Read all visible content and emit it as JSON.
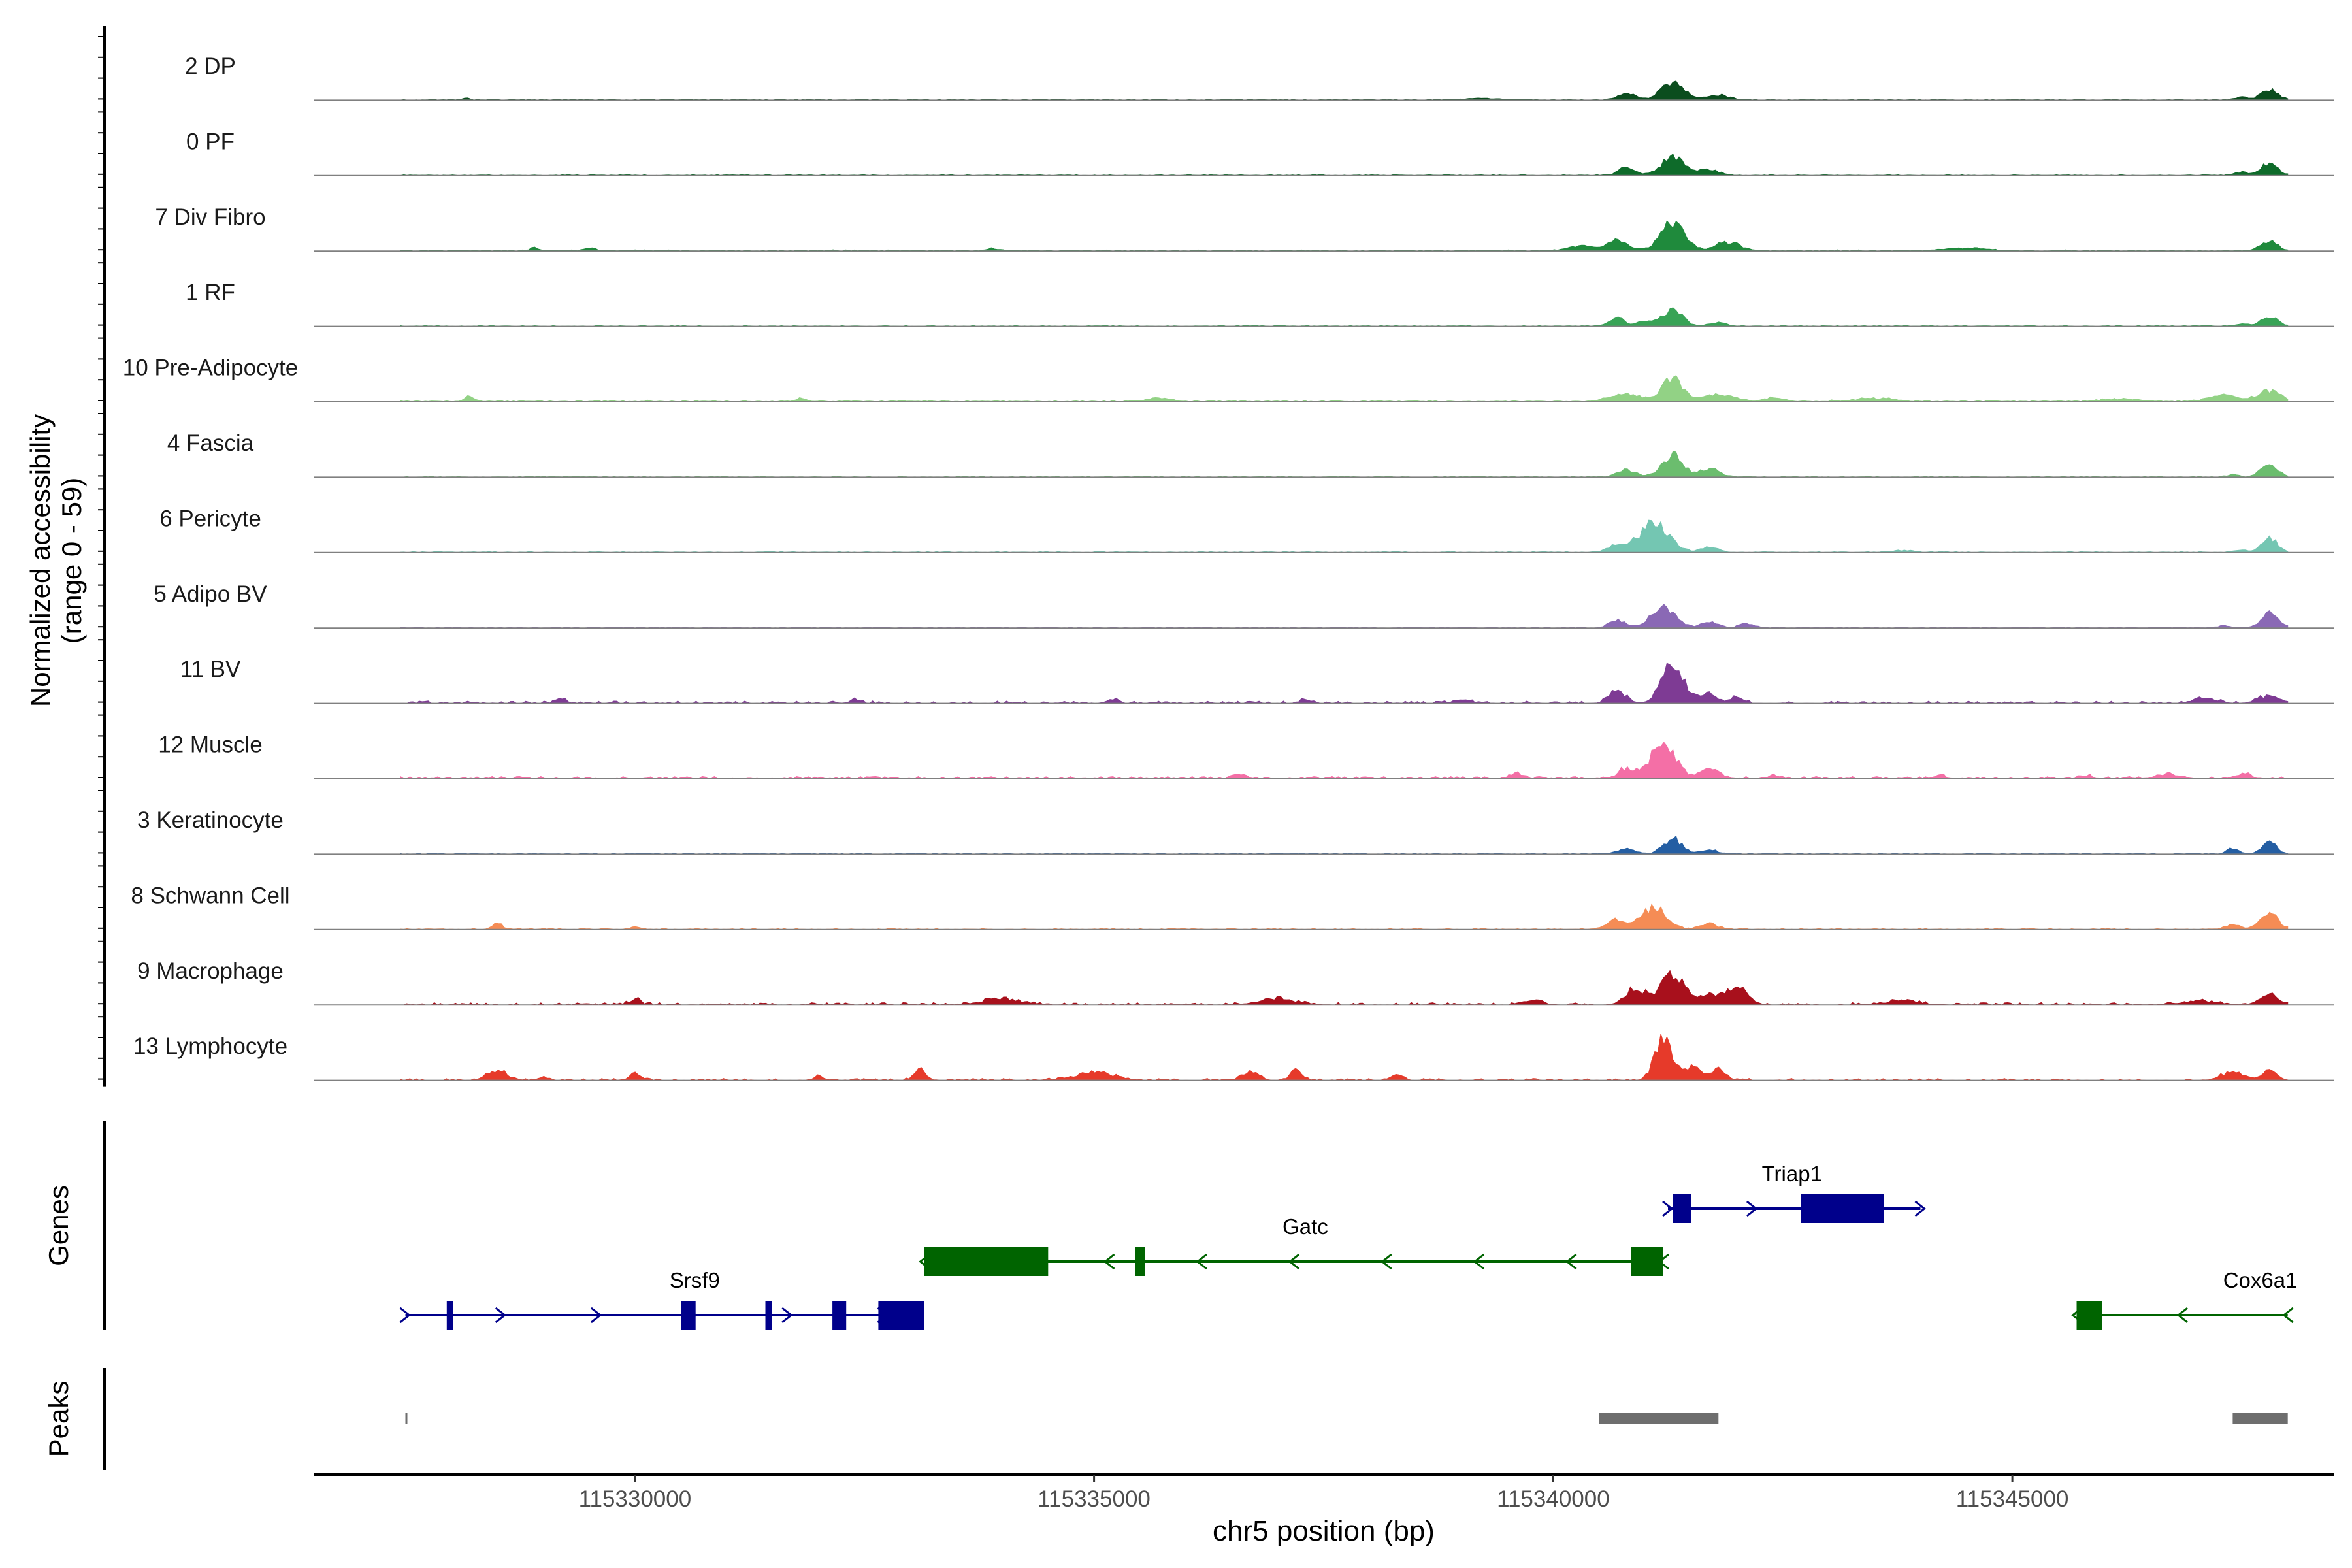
{
  "chart_data": {
    "type": "area",
    "xlabel": "chr5 position (bp)",
    "xlim": [
      115326500,
      115348500
    ],
    "xticks": [
      115330000,
      115335000,
      115340000,
      115345000
    ],
    "xtick_labels": [
      "115330000",
      "115335000",
      "115340000",
      "115345000"
    ],
    "ylabel": "Normalized accessibility",
    "ylabel_range": "(range 0 - 59)",
    "ylim": [
      0,
      59
    ],
    "grid": false,
    "legend": "none",
    "tracks": [
      {
        "name": "2 DP",
        "color": "#0b4d1e",
        "base": 0.6,
        "noise": 0.5,
        "seed": 3,
        "peaks": [
          [
            115328150,
            1.5,
            40
          ],
          [
            115341300,
            14,
            130
          ],
          [
            115340800,
            5,
            100
          ],
          [
            115341800,
            4,
            120
          ],
          [
            115347800,
            9,
            90
          ],
          [
            115347500,
            2.5,
            70
          ],
          [
            115339200,
            1.2,
            200
          ]
        ]
      },
      {
        "name": "0 PF",
        "color": "#0e6b2a",
        "base": 0.6,
        "noise": 0.5,
        "seed": 7,
        "peaks": [
          [
            115341300,
            16,
            120
          ],
          [
            115340800,
            6,
            90
          ],
          [
            115341700,
            5,
            110
          ],
          [
            115347800,
            10,
            90
          ],
          [
            115347500,
            2.5,
            70
          ]
        ]
      },
      {
        "name": "7 Div Fibro",
        "color": "#1f8a3c",
        "base": 0.6,
        "noise": 0.6,
        "seed": 11,
        "peaks": [
          [
            115341300,
            23,
            130
          ],
          [
            115340700,
            9,
            110
          ],
          [
            115341900,
            7,
            130
          ],
          [
            115347800,
            8,
            90
          ],
          [
            115329500,
            3,
            60
          ],
          [
            115328900,
            2.5,
            50
          ],
          [
            115333900,
            2,
            50
          ],
          [
            115340300,
            4,
            120
          ],
          [
            115344500,
            2,
            200
          ]
        ]
      },
      {
        "name": "1 RF",
        "color": "#38a356",
        "base": 0.5,
        "noise": 0.5,
        "seed": 19,
        "peaks": [
          [
            115341300,
            14,
            110
          ],
          [
            115340700,
            7,
            80
          ],
          [
            115341000,
            5,
            80
          ],
          [
            115341800,
            3,
            90
          ],
          [
            115347800,
            8,
            90
          ],
          [
            115347500,
            2,
            60
          ]
        ]
      },
      {
        "name": "10 Pre-Adipocyte",
        "color": "#92d285",
        "base": 0.7,
        "noise": 0.9,
        "seed": 23,
        "peaks": [
          [
            115341300,
            19,
            110
          ],
          [
            115340800,
            6,
            180
          ],
          [
            115341800,
            6,
            160
          ],
          [
            115328200,
            5,
            50
          ],
          [
            115331800,
            3,
            50
          ],
          [
            115335700,
            3,
            120
          ],
          [
            115347800,
            9,
            120
          ],
          [
            115347300,
            5,
            160
          ],
          [
            115346200,
            2,
            200
          ],
          [
            115342400,
            3,
            100
          ],
          [
            115343500,
            2.5,
            200
          ]
        ]
      },
      {
        "name": "4 Fascia",
        "color": "#6bbd6e",
        "base": 0.5,
        "noise": 0.5,
        "seed": 29,
        "peaks": [
          [
            115341300,
            18,
            110
          ],
          [
            115340800,
            6,
            100
          ],
          [
            115341700,
            7,
            110
          ],
          [
            115347800,
            11,
            90
          ],
          [
            115347400,
            2,
            60
          ]
        ]
      },
      {
        "name": "6 Pericyte",
        "color": "#74c6b2",
        "base": 0.6,
        "noise": 0.5,
        "seed": 31,
        "peaks": [
          [
            115341100,
            24,
            160
          ],
          [
            115340700,
            6,
            100
          ],
          [
            115341700,
            5,
            90
          ],
          [
            115347800,
            13,
            80
          ],
          [
            115347500,
            2.5,
            60
          ],
          [
            115343800,
            1.5,
            120
          ]
        ]
      },
      {
        "name": "5 Adipo BV",
        "color": "#8a69b5",
        "base": 0.5,
        "noise": 0.5,
        "seed": 37,
        "peaks": [
          [
            115341200,
            17,
            130
          ],
          [
            115340700,
            6,
            90
          ],
          [
            115341700,
            5,
            90
          ],
          [
            115342100,
            4,
            70
          ],
          [
            115347800,
            12,
            90
          ],
          [
            115347300,
            2,
            60
          ]
        ]
      },
      {
        "name": "11 BV",
        "color": "#7e3b94",
        "base": 0.15,
        "noise": 2.0,
        "seed": 41,
        "peaks": [
          [
            115341300,
            32,
            120
          ],
          [
            115340700,
            10,
            90
          ],
          [
            115341700,
            7,
            90
          ],
          [
            115342000,
            5,
            70
          ],
          [
            115329200,
            3,
            60
          ],
          [
            115332400,
            3,
            60
          ],
          [
            115335200,
            3,
            60
          ],
          [
            115337300,
            3,
            60
          ],
          [
            115339000,
            3,
            80
          ],
          [
            115347800,
            6,
            120
          ],
          [
            115347100,
            4,
            120
          ]
        ]
      },
      {
        "name": "12 Muscle",
        "color": "#f46fa6",
        "base": 0.1,
        "noise": 2.0,
        "seed": 43,
        "peaks": [
          [
            115341200,
            29,
            130
          ],
          [
            115340800,
            8,
            90
          ],
          [
            115341700,
            9,
            100
          ],
          [
            115336600,
            4,
            60
          ],
          [
            115339600,
            4,
            60
          ],
          [
            115342400,
            3,
            60
          ],
          [
            115344200,
            3,
            60
          ],
          [
            115345800,
            3,
            60
          ],
          [
            115346700,
            4,
            120
          ],
          [
            115347500,
            4,
            80
          ]
        ]
      },
      {
        "name": "3 Keratinocyte",
        "color": "#245ea3",
        "base": 0.6,
        "noise": 0.5,
        "seed": 47,
        "peaks": [
          [
            115341300,
            13,
            100
          ],
          [
            115340800,
            4,
            90
          ],
          [
            115341700,
            3,
            90
          ],
          [
            115347800,
            10,
            80
          ],
          [
            115347400,
            5,
            60
          ]
        ]
      },
      {
        "name": "8 Schwann Cell",
        "color": "#f58c55",
        "base": 0.4,
        "noise": 0.8,
        "seed": 53,
        "peaks": [
          [
            115341100,
            19,
            130
          ],
          [
            115340700,
            8,
            110
          ],
          [
            115341700,
            5,
            90
          ],
          [
            115328500,
            6,
            50
          ],
          [
            115330000,
            2,
            60
          ],
          [
            115347800,
            13,
            100
          ],
          [
            115347400,
            4,
            80
          ]
        ]
      },
      {
        "name": "9 Macrophage",
        "color": "#a8101c",
        "base": 0.2,
        "noise": 2.0,
        "seed": 59,
        "peaks": [
          [
            115341300,
            27,
            120
          ],
          [
            115340900,
            14,
            110
          ],
          [
            115342000,
            15,
            110
          ],
          [
            115341700,
            10,
            100
          ],
          [
            115330000,
            5,
            60
          ],
          [
            115334000,
            5,
            200
          ],
          [
            115337000,
            5,
            200
          ],
          [
            115339800,
            5,
            80
          ],
          [
            115347800,
            11,
            90
          ],
          [
            115347000,
            3,
            200
          ],
          [
            115343800,
            3,
            200
          ]
        ]
      },
      {
        "name": "13 Lymphocyte",
        "color": "#e63a2a",
        "base": 0.1,
        "noise": 1.6,
        "seed": 61,
        "peaks": [
          [
            115341200,
            38,
            90
          ],
          [
            115341500,
            12,
            90
          ],
          [
            115341800,
            9,
            80
          ],
          [
            115328500,
            8,
            110
          ],
          [
            115330000,
            6,
            60
          ],
          [
            115329000,
            3,
            50
          ],
          [
            115332000,
            3,
            60
          ],
          [
            115333100,
            9,
            60
          ],
          [
            115335000,
            7,
            200
          ],
          [
            115336700,
            7,
            80
          ],
          [
            115337200,
            9,
            60
          ],
          [
            115338300,
            5,
            60
          ],
          [
            115347400,
            7,
            120
          ],
          [
            115347800,
            8,
            80
          ]
        ]
      }
    ],
    "genes_label": "Genes",
    "genes": [
      {
        "name": "Srsf9",
        "strand": "+",
        "color": "#00008b",
        "start": 115327500,
        "end": 115332700,
        "row": 2,
        "label_pos": 115330650,
        "exons": [
          [
            115327950,
            115328020
          ],
          [
            115330500,
            115330660
          ],
          [
            115331420,
            115331490
          ],
          [
            115332150,
            115332300
          ],
          [
            115332650,
            115333150
          ]
        ]
      },
      {
        "name": "Gatc",
        "strand": "-",
        "color": "#006400",
        "start": 115333150,
        "end": 115341200,
        "row": 1,
        "label_pos": 115337300,
        "exons": [
          [
            115333150,
            115334500
          ],
          [
            115335450,
            115335550
          ],
          [
            115340850,
            115341200
          ]
        ]
      },
      {
        "name": "Triap1",
        "strand": "+",
        "color": "#00008b",
        "start": 115341250,
        "end": 115344000,
        "row": 0,
        "label_pos": 115342600,
        "exons": [
          [
            115341300,
            115341500
          ],
          [
            115342700,
            115343600
          ]
        ]
      },
      {
        "name": "Cox6a1",
        "strand": "-",
        "color": "#006400",
        "start": 115345700,
        "end": 115348000,
        "row": 2,
        "label_pos": 115347700,
        "exons": [
          [
            115345700,
            115345980
          ]
        ]
      }
    ],
    "peaks_label": "Peaks",
    "peak_regions": [
      [
        115327500,
        115327520
      ],
      [
        115340500,
        115341800
      ],
      [
        115347400,
        115348000
      ]
    ]
  }
}
